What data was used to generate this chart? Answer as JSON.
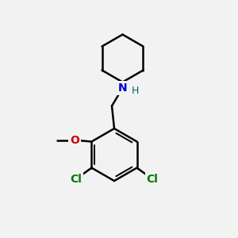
{
  "background_color": "#f2f2f2",
  "bond_color": "#000000",
  "N_color": "#0000cc",
  "O_color": "#cc0000",
  "Cl_color": "#007700",
  "H_color": "#006060",
  "bond_width": 1.8,
  "figsize": [
    3.0,
    3.0
  ],
  "dpi": 100,
  "xlim": [
    0,
    10
  ],
  "ylim": [
    0,
    10
  ]
}
